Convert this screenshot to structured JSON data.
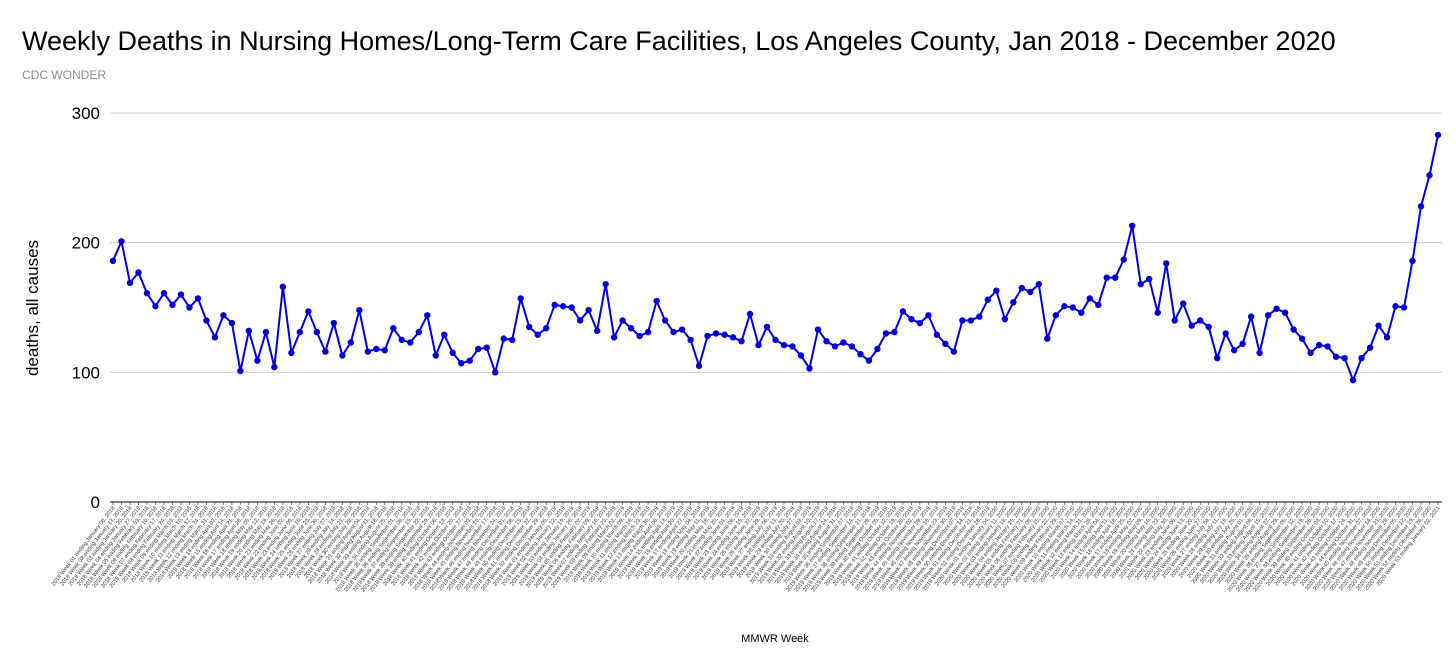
{
  "chart_data": {
    "type": "line",
    "title": "Weekly Deaths in Nursing Homes/Long-Term Care Facilities, Los Angeles County, Jan 2018 - December 2020",
    "subtitle": "CDC WONDER",
    "xlabel": "MMWR Week",
    "ylabel": "deaths, all causes",
    "ylim": [
      0,
      300
    ],
    "yticks": [
      0,
      100,
      200,
      300
    ],
    "grid": true,
    "legend": "none",
    "series": [
      {
        "color": "#0000dd",
        "values": [
          186,
          201,
          169,
          177,
          161,
          151,
          161,
          152,
          160,
          150,
          157,
          140,
          127,
          144,
          138,
          101,
          132,
          109,
          131,
          104,
          166,
          115,
          131,
          147,
          131,
          116,
          138,
          113,
          123,
          148,
          116,
          118,
          117,
          134,
          125,
          123,
          131,
          144,
          113,
          129,
          115,
          107,
          109,
          118,
          119,
          100,
          126,
          125,
          157,
          135,
          129,
          134,
          152,
          151,
          150,
          140,
          148,
          132,
          168,
          127,
          140,
          134,
          128,
          131,
          155,
          140,
          131,
          133,
          125,
          105,
          128,
          130,
          129,
          127,
          124,
          145,
          121,
          135,
          125,
          121,
          120,
          113,
          103,
          133,
          124,
          120,
          123,
          120,
          114,
          109,
          118,
          130,
          131,
          147,
          141,
          138,
          144,
          129,
          122,
          116,
          140,
          140,
          143,
          156,
          163,
          141,
          154,
          165,
          162,
          168,
          126,
          144,
          151,
          150,
          146,
          157,
          152,
          173,
          173,
          187,
          213,
          168,
          172,
          146,
          184,
          140,
          153,
          136,
          140,
          135,
          111,
          130,
          117,
          122,
          143,
          115,
          144,
          149,
          146,
          133,
          126,
          115,
          121,
          120,
          112,
          111,
          94,
          111,
          119,
          136,
          127,
          151,
          150,
          186,
          228,
          252,
          283
        ]
      }
    ],
    "x_labels": [
      "2018 Week 01 ending January 06, 2018",
      "2018 Week 02 ending January 13, 2018",
      "2018 Week 03 ending January 20, 2018",
      "2018 Week 04 ending January 27, 2018",
      "2018 Week 05 ending February 03, 2018",
      "2018 Week 06 ending February 10, 2018",
      "2018 Week 07 ending February 17, 2018",
      "2018 Week 08 ending February 24, 2018",
      "2018 Week 09 ending March 03, 2018",
      "2018 Week 10 ending March 10, 2018",
      "2018 Week 11 ending March 17, 2018",
      "2018 Week 12 ending March 24, 2018",
      "2018 Week 13 ending March 31, 2018",
      "2018 Week 14 ending April 07, 2018",
      "2018 Week 15 ending April 14, 2018",
      "2018 Week 16 ending April 21, 2018",
      "2018 Week 17 ending April 28, 2018",
      "2018 Week 18 ending May 05, 2018",
      "2018 Week 19 ending May 12, 2018",
      "2018 Week 20 ending May 19, 2018",
      "2018 Week 21 ending May 26, 2018",
      "2018 Week 22 ending June 02, 2018",
      "2018 Week 23 ending June 09, 2018",
      "2018 Week 24 ending June 16, 2018",
      "2018 Week 25 ending June 23, 2018",
      "2018 Week 26 ending June 30, 2018",
      "2018 Week 27 ending July 07, 2018",
      "2018 Week 28 ending July 14, 2018",
      "2018 Week 29 ending July 21, 2018",
      "2018 Week 30 ending July 28, 2018",
      "2018 Week 31 ending August 04, 2018",
      "2018 Week 32 ending August 11, 2018",
      "2018 Week 33 ending August 18, 2018",
      "2018 Week 34 ending August 25, 2018",
      "2018 Week 35 ending September 01, 2018",
      "2018 Week 36 ending September 08, 2018",
      "2018 Week 37 ending September 15, 2018",
      "2018 Week 38 ending September 22, 2018",
      "2018 Week 39 ending September 29, 2018",
      "2018 Week 40 ending October 06, 2018",
      "2018 Week 41 ending October 13, 2018",
      "2018 Week 42 ending October 20, 2018",
      "2018 Week 43 ending October 27, 2018",
      "2018 Week 44 ending November 03, 2018",
      "2018 Week 45 ending November 10, 2018",
      "2018 Week 46 ending November 17, 2018",
      "2018 Week 47 ending November 24, 2018",
      "2018 Week 48 ending December 01, 2018",
      "2018 Week 49 ending December 08, 2018",
      "2018 Week 50 ending December 15, 2018",
      "2018 Week 51 ending December 22, 2018",
      "2018 Week 52 ending December 29, 2018",
      "2019 Week 01 ending January 05, 2019",
      "2019 Week 02 ending January 12, 2019",
      "2019 Week 03 ending January 19, 2019",
      "2019 Week 04 ending January 26, 2019",
      "2019 Week 05 ending February 02, 2019",
      "2019 Week 06 ending February 09, 2019",
      "2019 Week 07 ending February 16, 2019",
      "2019 Week 08 ending February 23, 2019",
      "2019 Week 09 ending March 02, 2019",
      "2019 Week 10 ending March 09, 2019",
      "2019 Week 11 ending March 16, 2019",
      "2019 Week 12 ending March 23, 2019",
      "2019 Week 13 ending March 30, 2019",
      "2019 Week 14 ending April 06, 2019",
      "2019 Week 15 ending April 13, 2019",
      "2019 Week 16 ending April 20, 2019",
      "2019 Week 17 ending April 27, 2019",
      "2019 Week 18 ending May 04, 2019",
      "2019 Week 19 ending May 11, 2019",
      "2019 Week 20 ending May 18, 2019",
      "2019 Week 21 ending May 25, 2019",
      "2019 Week 22 ending June 01, 2019",
      "2019 Week 23 ending June 08, 2019",
      "2019 Week 24 ending June 15, 2019",
      "2019 Week 25 ending June 22, 2019",
      "2019 Week 26 ending June 29, 2019",
      "2019 Week 27 ending July 06, 2019",
      "2019 Week 28 ending July 13, 2019",
      "2019 Week 29 ending July 20, 2019",
      "2019 Week 30 ending July 27, 2019",
      "2019 Week 31 ending August 03, 2019",
      "2019 Week 32 ending August 10, 2019",
      "2019 Week 33 ending August 17, 2019",
      "2019 Week 34 ending August 24, 2019",
      "2019 Week 35 ending August 31, 2019",
      "2019 Week 36 ending September 07, 2019",
      "2019 Week 37 ending September 14, 2019",
      "2019 Week 38 ending September 21, 2019",
      "2019 Week 39 ending September 28, 2019",
      "2019 Week 40 ending October 05, 2019",
      "2019 Week 41 ending October 12, 2019",
      "2019 Week 42 ending October 19, 2019",
      "2019 Week 43 ending October 26, 2019",
      "2019 Week 44 ending November 02, 2019",
      "2019 Week 45 ending November 09, 2019",
      "2019 Week 46 ending November 16, 2019",
      "2019 Week 47 ending November 23, 2019",
      "2019 Week 48 ending November 30, 2019",
      "2019 Week 49 ending December 07, 2019",
      "2019 Week 50 ending December 14, 2019",
      "2019 Week 51 ending December 21, 2019",
      "2019 Week 52 ending December 28, 2019",
      "2020 Week 01 ending January 04, 2020",
      "2020 Week 02 ending January 11, 2020",
      "2020 Week 03 ending January 18, 2020",
      "2020 Week 04 ending January 25, 2020",
      "2020 Week 05 ending February 01, 2020",
      "2020 Week 06 ending February 08, 2020",
      "2020 Week 07 ending February 15, 2020",
      "2020 Week 08 ending February 22, 2020",
      "2020 Week 09 ending February 29, 2020",
      "2020 Week 10 ending March 07, 2020",
      "2020 Week 11 ending March 14, 2020",
      "2020 Week 12 ending March 21, 2020",
      "2020 Week 13 ending March 28, 2020",
      "2020 Week 14 ending April 04, 2020",
      "2020 Week 15 ending April 11, 2020",
      "2020 Week 16 ending April 18, 2020",
      "2020 Week 17 ending April 25, 2020",
      "2020 Week 18 ending May 02, 2020",
      "2020 Week 19 ending May 09, 2020",
      "2020 Week 20 ending May 16, 2020",
      "2020 Week 21 ending May 23, 2020",
      "2020 Week 22 ending May 30, 2020",
      "2020 Week 23 ending June 06, 2020",
      "2020 Week 24 ending June 13, 2020",
      "2020 Week 25 ending June 20, 2020",
      "2020 Week 26 ending June 27, 2020",
      "2020 Week 27 ending July 04, 2020",
      "2020 Week 28 ending July 11, 2020",
      "2020 Week 29 ending July 18, 2020",
      "2020 Week 30 ending July 25, 2020",
      "2020 Week 31 ending August 01, 2020",
      "2020 Week 32 ending August 08, 2020",
      "2020 Week 33 ending August 15, 2020",
      "2020 Week 34 ending August 22, 2020",
      "2020 Week 35 ending August 29, 2020",
      "2020 Week 36 ending September 05, 2020",
      "2020 Week 37 ending September 12, 2020",
      "2020 Week 38 ending September 19, 2020",
      "2020 Week 39 ending September 26, 2020",
      "2020 Week 40 ending October 03, 2020",
      "2020 Week 41 ending October 10, 2020",
      "2020 Week 42 ending October 17, 2020",
      "2020 Week 43 ending October 24, 2020",
      "2020 Week 44 ending October 31, 2020",
      "2020 Week 45 ending November 07, 2020",
      "2020 Week 46 ending November 14, 2020",
      "2020 Week 47 ending November 21, 2020",
      "2020 Week 48 ending November 28, 2020",
      "2020 Week 49 ending December 05, 2020",
      "2020 Week 50 ending December 12, 2020",
      "2020 Week 51 ending December 19, 2020",
      "2020 Week 52 ending December 26, 2020",
      "2020 Week 53 ending January 02, 2021"
    ]
  }
}
